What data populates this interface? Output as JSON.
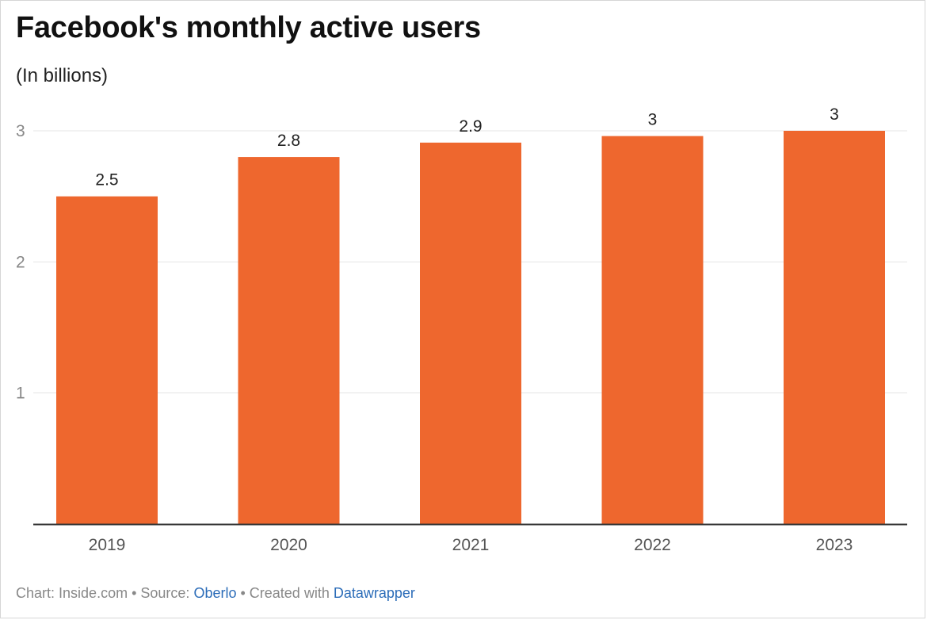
{
  "header": {
    "title": "Facebook's monthly active users",
    "subtitle": "(In billions)"
  },
  "footer": {
    "chart_prefix": "Chart: ",
    "chart_author": "Inside.com",
    "sep1": " • ",
    "source_prefix": "Source: ",
    "source_name": "Oberlo",
    "sep2": " • ",
    "created_prefix": "Created with ",
    "tool_name": "Datawrapper"
  },
  "colors": {
    "bar": "#ee672e",
    "grid": "#e4e4e4",
    "baseline": "#333333",
    "tick_text": "#888888",
    "category_text": "#555555",
    "value_text": "#222222",
    "link": "#2b6cb8"
  },
  "chart_data": {
    "type": "bar",
    "categories": [
      "2019",
      "2020",
      "2021",
      "2022",
      "2023"
    ],
    "values": [
      2.5,
      2.8,
      2.91,
      2.96,
      3.0
    ],
    "value_labels": [
      "2.5",
      "2.8",
      "2.9",
      "3",
      "3"
    ],
    "ylim": [
      0,
      3.0
    ],
    "yticks": [
      1,
      2,
      3
    ],
    "ytick_labels": [
      "1",
      "2",
      "3"
    ],
    "grid": true,
    "legend": "none"
  }
}
